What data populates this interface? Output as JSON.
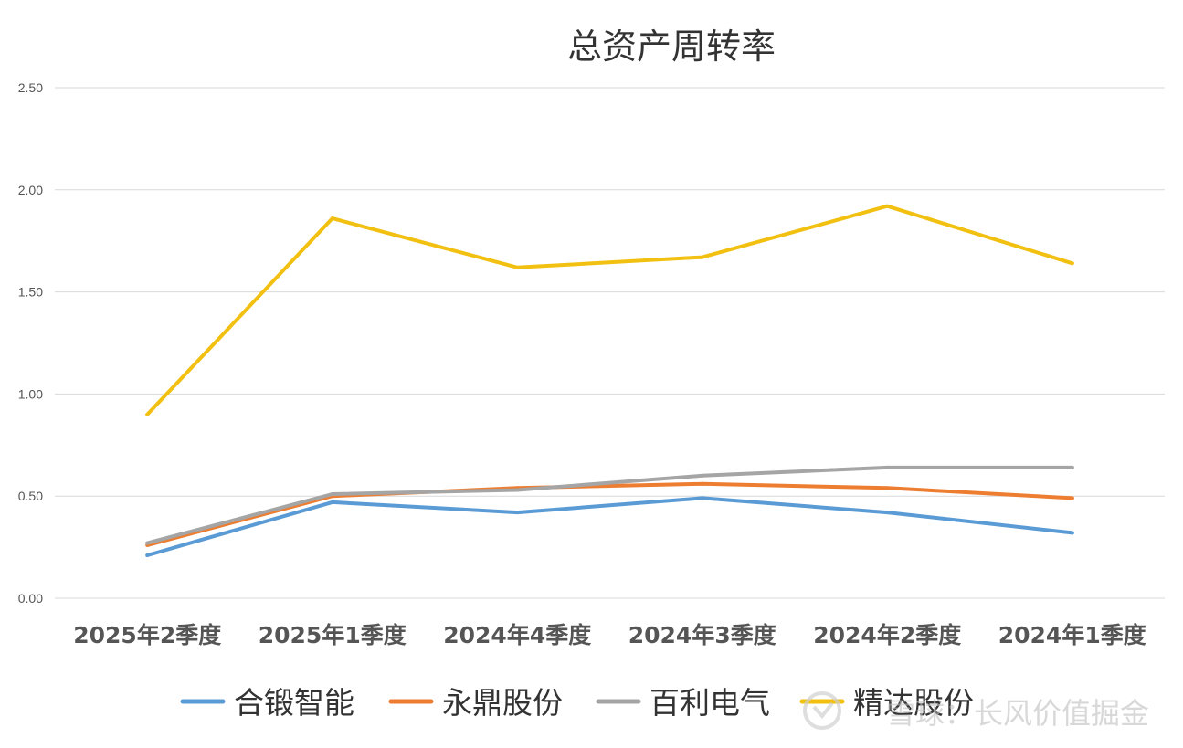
{
  "chart_data": {
    "type": "line",
    "title": "总资产周转率",
    "categories": [
      "2025年2季度",
      "2025年1季度",
      "2024年4季度",
      "2024年3季度",
      "2024年2季度",
      "2024年1季度"
    ],
    "ylim": [
      0,
      2.5
    ],
    "yticks": [
      "0.00",
      "0.50",
      "1.00",
      "1.50",
      "2.00",
      "2.50"
    ],
    "grid": true,
    "legend_position": "bottom",
    "series": [
      {
        "name": "合锻智能",
        "color": "#5b9bd5",
        "values": [
          0.21,
          0.47,
          0.42,
          0.49,
          0.42,
          0.32
        ]
      },
      {
        "name": "永鼎股份",
        "color": "#ed7d31",
        "values": [
          0.26,
          0.5,
          0.54,
          0.56,
          0.54,
          0.49
        ]
      },
      {
        "name": "百利电气",
        "color": "#a5a5a5",
        "values": [
          0.27,
          0.51,
          0.53,
          0.6,
          0.64,
          0.64
        ]
      },
      {
        "name": "精达股份",
        "color": "#f2c010",
        "values": [
          0.9,
          1.86,
          1.62,
          1.67,
          1.92,
          1.64
        ]
      }
    ]
  },
  "watermark": {
    "text": "雪球：长风价值掘金"
  }
}
